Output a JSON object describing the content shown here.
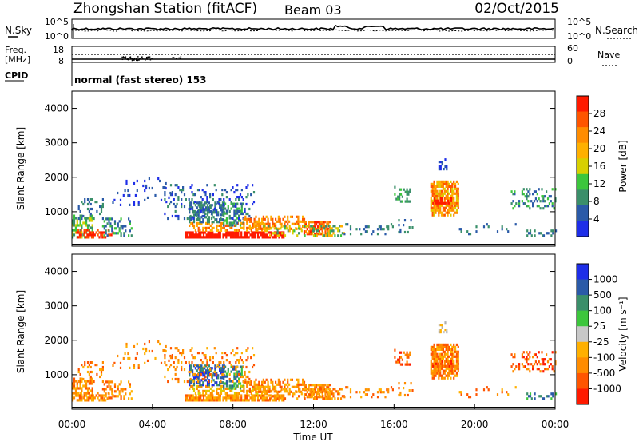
{
  "header": {
    "station": "Zhongshan Station (fitACF)",
    "beam": "Beam 03",
    "date": "02/Oct/2015"
  },
  "top_panel": {
    "left_label": "N.Sky",
    "right_label": "N.Search",
    "left_ticks": [
      "10^5",
      "10^0"
    ],
    "right_ticks": [
      "10^5",
      "10^0"
    ]
  },
  "freq_panel": {
    "left_label_1": "Freq.",
    "left_label_2": "[MHz]",
    "right_label": "Nave",
    "left_ticks": [
      "18",
      "8"
    ],
    "right_ticks": [
      "60",
      "0"
    ]
  },
  "cpid": {
    "label": "CPID",
    "text": "normal (fast stereo) 153"
  },
  "chart_data": [
    {
      "type": "heatmap",
      "name": "power",
      "ylabel": "Slant Range [km]",
      "yticks": [
        1000,
        2000,
        3000,
        4000
      ],
      "colorbar_label": "Power [dB]",
      "colorbar_ticks": [
        "28",
        "24",
        "20",
        "16",
        "12",
        "8",
        "4"
      ],
      "colorbar_colors": [
        "#ff1a00",
        "#ff5500",
        "#ff8c00",
        "#ffb000",
        "#d8d000",
        "#3cc63c",
        "#3a8f6a",
        "#2a5aa8",
        "#1e2ee8"
      ]
    },
    {
      "type": "heatmap",
      "name": "velocity",
      "ylabel": "Slant Range [km]",
      "yticks": [
        1000,
        2000,
        3000,
        4000
      ],
      "colorbar_label": "Velocity [m s⁻¹]",
      "colorbar_ticks": [
        "1000",
        "500",
        "100",
        "25",
        "-25",
        "-100",
        "-500",
        "-1000"
      ],
      "colorbar_colors": [
        "#1e2ee8",
        "#2a5aa8",
        "#3a8f6a",
        "#3cc63c",
        "#c8c8c8",
        "#ffb000",
        "#ff8c00",
        "#ff5500",
        "#ff1a00"
      ]
    }
  ],
  "x_axis": {
    "ticks": [
      "00:00",
      "04:00",
      "08:00",
      "12:00",
      "16:00",
      "20:00",
      "00:00"
    ],
    "label": "Time UT"
  }
}
